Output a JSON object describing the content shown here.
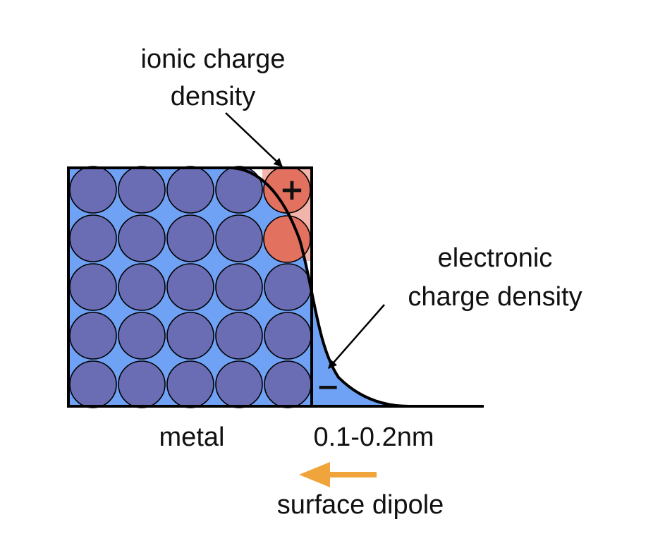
{
  "labels": {
    "ionic_line1": "ionic charge",
    "ionic_line2": "density",
    "electronic_line1": "electronic",
    "electronic_line2": "charge density",
    "metal": "metal",
    "distance": "0.1-0.2nm",
    "dipole": "surface dipole"
  },
  "signs": {
    "plus": "+",
    "minus": "−"
  },
  "lattice": {
    "rows": 5,
    "columns": 5
  },
  "colors": {
    "electron_fill": "#6fa1f5",
    "atom_fill": "#6a6db4",
    "ion_fill": "#e2715f",
    "ion_region": "#f2b5ab",
    "arrow_orange": "#f0a43c",
    "outline": "#000000"
  }
}
